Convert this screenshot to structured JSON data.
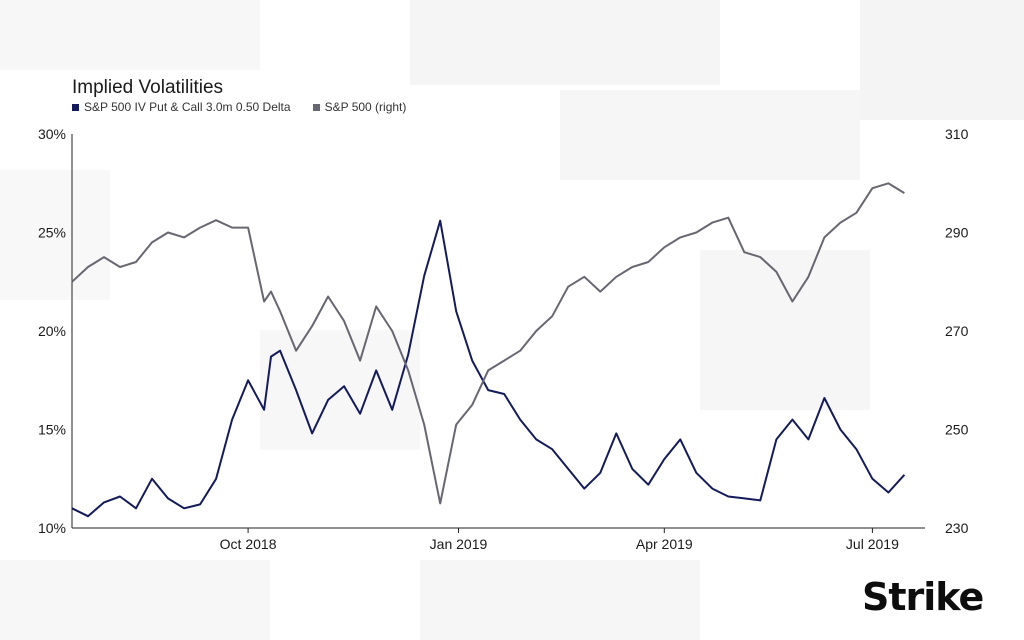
{
  "chart_data": {
    "type": "line",
    "title": "Implied Volatilities",
    "x_tick_labels": [
      "Oct 2018",
      "Jan 2019",
      "Apr 2019",
      "Jul 2019"
    ],
    "y_left": {
      "ticks": [
        "10%",
        "15%",
        "20%",
        "25%",
        "30%"
      ],
      "range": [
        10,
        30
      ],
      "unit": "%"
    },
    "y_right": {
      "ticks": [
        "230",
        "250",
        "270",
        "290",
        "310"
      ],
      "range": [
        230,
        310
      ]
    },
    "grid": false,
    "legend_position": "top-left",
    "series": [
      {
        "name": "S&P 500 IV Put & Call 3.0m 0.50 Delta",
        "axis": "left",
        "color": "#141b5c",
        "x": [
          "2018-07-16",
          "2018-07-23",
          "2018-07-30",
          "2018-08-06",
          "2018-08-13",
          "2018-08-20",
          "2018-08-27",
          "2018-09-03",
          "2018-09-10",
          "2018-09-17",
          "2018-09-24",
          "2018-10-01",
          "2018-10-08",
          "2018-10-11",
          "2018-10-15",
          "2018-10-22",
          "2018-10-29",
          "2018-11-05",
          "2018-11-12",
          "2018-11-19",
          "2018-11-26",
          "2018-12-03",
          "2018-12-10",
          "2018-12-17",
          "2018-12-24",
          "2018-12-31",
          "2019-01-07",
          "2019-01-14",
          "2019-01-21",
          "2019-01-28",
          "2019-02-04",
          "2019-02-11",
          "2019-02-18",
          "2019-02-25",
          "2019-03-04",
          "2019-03-11",
          "2019-03-18",
          "2019-03-25",
          "2019-04-01",
          "2019-04-08",
          "2019-04-15",
          "2019-04-22",
          "2019-04-29",
          "2019-05-06",
          "2019-05-13",
          "2019-05-20",
          "2019-05-27",
          "2019-06-03",
          "2019-06-10",
          "2019-06-17",
          "2019-06-24",
          "2019-07-01",
          "2019-07-08",
          "2019-07-15"
        ],
        "values": [
          11.0,
          10.6,
          11.3,
          11.6,
          11.0,
          12.5,
          11.5,
          11.0,
          11.2,
          12.5,
          15.5,
          17.5,
          16.0,
          18.7,
          19.0,
          17.0,
          14.8,
          16.5,
          17.2,
          15.8,
          18.0,
          16.0,
          18.8,
          22.8,
          25.6,
          21.0,
          18.5,
          17.0,
          16.8,
          15.5,
          14.5,
          14.0,
          13.0,
          12.0,
          12.8,
          14.8,
          13.0,
          12.2,
          13.5,
          14.5,
          12.8,
          12.0,
          11.6,
          11.5,
          11.4,
          14.5,
          15.5,
          14.5,
          16.6,
          15.0,
          14.0,
          12.5,
          11.8,
          12.7
        ]
      },
      {
        "name": "S&P 500 (right)",
        "axis": "right",
        "color": "#676771",
        "x": [
          "2018-07-16",
          "2018-07-23",
          "2018-07-30",
          "2018-08-06",
          "2018-08-13",
          "2018-08-20",
          "2018-08-27",
          "2018-09-03",
          "2018-09-10",
          "2018-09-17",
          "2018-09-24",
          "2018-10-01",
          "2018-10-08",
          "2018-10-11",
          "2018-10-15",
          "2018-10-22",
          "2018-10-29",
          "2018-11-05",
          "2018-11-12",
          "2018-11-19",
          "2018-11-26",
          "2018-12-03",
          "2018-12-10",
          "2018-12-17",
          "2018-12-24",
          "2018-12-31",
          "2019-01-07",
          "2019-01-14",
          "2019-01-21",
          "2019-01-28",
          "2019-02-04",
          "2019-02-11",
          "2019-02-18",
          "2019-02-25",
          "2019-03-04",
          "2019-03-11",
          "2019-03-18",
          "2019-03-25",
          "2019-04-01",
          "2019-04-08",
          "2019-04-15",
          "2019-04-22",
          "2019-04-29",
          "2019-05-06",
          "2019-05-13",
          "2019-05-20",
          "2019-05-27",
          "2019-06-03",
          "2019-06-10",
          "2019-06-17",
          "2019-06-24",
          "2019-07-01",
          "2019-07-08",
          "2019-07-15"
        ],
        "values": [
          280.0,
          283.0,
          285.0,
          283.0,
          284.0,
          288.0,
          290.0,
          289.0,
          291.0,
          292.5,
          291.0,
          291.0,
          276.0,
          278.0,
          274.0,
          266.0,
          271.0,
          277.0,
          272.0,
          264.0,
          275.0,
          270.0,
          262.0,
          251.0,
          235.0,
          251.0,
          255.0,
          262.0,
          264.0,
          266.0,
          270.0,
          273.0,
          279.0,
          281.0,
          278.0,
          281.0,
          283.0,
          284.0,
          287.0,
          289.0,
          290.0,
          292.0,
          293.0,
          286.0,
          285.0,
          282.0,
          276.0,
          281.0,
          289.0,
          292.0,
          294.0,
          299.0,
          300.0,
          298.0
        ]
      }
    ]
  },
  "brand": {
    "logo_text": "Strike",
    "accent_color": "#1e4fd8"
  }
}
